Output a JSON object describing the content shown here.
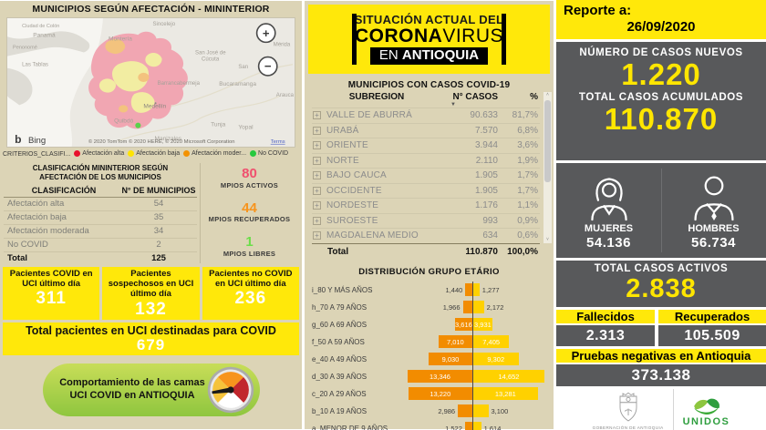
{
  "colors": {
    "yellow": "#FFE80A",
    "dark_gray": "#58595B",
    "beige": "#DCD4B6",
    "value_yellow": "#FFE600",
    "bar_f_orange": "#F28C00",
    "bar_m_gold": "#FFD100",
    "green_pill": "#8FC63F"
  },
  "left_panel": {
    "title": "MUNICIPIOS SEGÚN AFECTACIÓN - MININTERIOR",
    "map": {
      "logo_glyph": "b",
      "provider": "Bing",
      "attribution": "© 2020 TomTom © 2020 HERE, © 2020 Microsoft Corporation",
      "terms": "Terms",
      "zoom_in": "+",
      "zoom_out": "−",
      "city_labels": [
        "Ciudad de Colón",
        "Panamá",
        "Penonomé",
        "Las Tablas",
        "Montería",
        "Sincelejo",
        "San José de",
        "Cúcuta",
        "San",
        "Mérida",
        "Bucaramanga",
        "Barrancabermeja",
        "Arauca",
        "Medellín",
        "Quibdó",
        "Tunja",
        "Yopal",
        "Manizales"
      ]
    },
    "map_legend": {
      "title": "CRITERIOS_CLASIFI...",
      "items": [
        {
          "label": "Afectación alta",
          "color": "#E8112D"
        },
        {
          "label": "Afectación baja",
          "color": "#FFE400"
        },
        {
          "label": "Afectación moder...",
          "color": "#F39200"
        },
        {
          "label": "No COVID",
          "color": "#27C93F"
        }
      ]
    },
    "classification": {
      "title": "CLASIFICACIÓN MININTERIOR SEGÚN AFECTACIÓN DE LOS MUNICIPIOS",
      "col_classification": "CLASIFICACIÓN",
      "col_count": "N° DE MUNICIPIOS",
      "rows": [
        {
          "label": "Afectación alta",
          "value": "54"
        },
        {
          "label": "Afectación baja",
          "value": "35"
        },
        {
          "label": "Afectación moderada",
          "value": "34"
        },
        {
          "label": "No COVID",
          "value": "2"
        }
      ],
      "total_label": "Total",
      "total_value": "125"
    },
    "mpio_stats": [
      {
        "value": "80",
        "label": "MPIOS ACTIVOS",
        "color": "#F0506E"
      },
      {
        "value": "44",
        "label": "MPIOS RECUPERADOS",
        "color": "#F7941D"
      },
      {
        "value": "1",
        "label": "MPIOS LIBRES",
        "color": "#6BDE49"
      }
    ],
    "uci_cards": [
      {
        "title": "Pacientes COVID en UCI último día",
        "value": "311"
      },
      {
        "title": "Pacientes sospechosos en UCI último día",
        "value": "132"
      },
      {
        "title": "Pacientes no COVID en UCI último día",
        "value": "236"
      }
    ],
    "uci_total_label": "Total pacientes en UCI destinadas para COVID",
    "uci_total_value": "679",
    "gauge_button_label": "Comportamiento de las camas UCI COVID en ANTIOQUIA"
  },
  "middle_panel": {
    "banner": {
      "line1": "SITUACIÓN ACTUAL DEL",
      "line2_strong": "CORONA",
      "line2_light": "VIRUS",
      "line3_light": "EN ",
      "line3_strong": "ANTIOQUIA"
    },
    "table": {
      "title": "MUNICIPIOS CON CASOS COVID-19",
      "col_subregion": "SUBREGION",
      "col_cases": "N° CASOS",
      "col_pct": "%",
      "sort_icon": "▼",
      "expand_symbol": "+",
      "scroll_up": "˄",
      "scroll_down": "˅",
      "rows": [
        {
          "name": "VALLE DE ABURRÁ",
          "cases": "90.633",
          "pct": "81,7%"
        },
        {
          "name": "URABÁ",
          "cases": "7.570",
          "pct": "6,8%"
        },
        {
          "name": "ORIENTE",
          "cases": "3.944",
          "pct": "3,6%"
        },
        {
          "name": "NORTE",
          "cases": "2.110",
          "pct": "1,9%"
        },
        {
          "name": "BAJO CAUCA",
          "cases": "1.905",
          "pct": "1,7%"
        },
        {
          "name": "OCCIDENTE",
          "cases": "1.905",
          "pct": "1,7%"
        },
        {
          "name": "NORDESTE",
          "cases": "1.176",
          "pct": "1,1%"
        },
        {
          "name": "SUROESTE",
          "cases": "993",
          "pct": "0,9%"
        },
        {
          "name": "MAGDALENA MEDIO",
          "cases": "634",
          "pct": "0,6%"
        }
      ],
      "total_label": "Total",
      "total_cases": "110.870",
      "total_pct": "100,0%"
    },
    "pyramid_title": "DISTRIBUCIÓN GRUPO ETÁRIO"
  },
  "right_panel": {
    "report_label": "Reporte a:",
    "report_date": "26/09/2020",
    "new_cases_label": "NÚMERO DE CASOS NUEVOS",
    "new_cases_value": "1.220",
    "total_cases_label": "TOTAL CASOS ACUMULADOS",
    "total_cases_value": "110.870",
    "women_label": "MUJERES",
    "women_value": "54.136",
    "men_label": "HOMBRES",
    "men_value": "56.734",
    "active_label": "TOTAL CASOS ACTIVOS",
    "active_value": "2.838",
    "deaths_label": "Fallecidos",
    "deaths_value": "2.313",
    "recovered_label": "Recuperados",
    "recovered_value": "105.509",
    "negative_label": "Pruebas negativas en Antioquia",
    "negative_value": "373.138",
    "footer": {
      "gov_label": "GOBERNACIÓN DE ANTIOQUIA",
      "unidos_label": "UNIDOS"
    }
  },
  "chart_data": [
    {
      "type": "table",
      "title": "MUNICIPIOS CON CASOS COVID-19",
      "columns": [
        "SUBREGION",
        "N° CASOS",
        "%"
      ],
      "rows": [
        [
          "VALLE DE ABURRÁ",
          90633,
          81.7
        ],
        [
          "URABÁ",
          7570,
          6.8
        ],
        [
          "ORIENTE",
          3944,
          3.6
        ],
        [
          "NORTE",
          2110,
          1.9
        ],
        [
          "BAJO CAUCA",
          1905,
          1.7
        ],
        [
          "OCCIDENTE",
          1905,
          1.7
        ],
        [
          "NORDESTE",
          1176,
          1.1
        ],
        [
          "SUROESTE",
          993,
          0.9
        ],
        [
          "MAGDALENA MEDIO",
          634,
          0.6
        ]
      ],
      "total": [
        "Total",
        110870,
        100.0
      ]
    },
    {
      "type": "bar",
      "orientation": "horizontal-pyramid",
      "title": "DISTRIBUCIÓN GRUPO ETÁRIO",
      "categories": [
        "i_80 Y MÁS AÑOS",
        "h_70 A 79 AÑOS",
        "g_60 A 69 AÑOS",
        "f_50 A 59 AÑOS",
        "e_40 A 49 AÑOS",
        "d_30 A 39 AÑOS",
        "c_20 A 29 AÑOS",
        "b_10 A 19 AÑOS",
        "a_MENOR DE 9 AÑOS"
      ],
      "series": [
        {
          "name": "F",
          "color": "#F28C00",
          "values": [
            1440,
            1966,
            3616,
            7010,
            9030,
            13346,
            13220,
            2986,
            1522
          ]
        },
        {
          "name": "M",
          "color": "#FFD100",
          "values": [
            1277,
            2172,
            3931,
            7405,
            9302,
            14652,
            13281,
            3100,
            1614
          ]
        }
      ],
      "value_labels": {
        "F": [
          "1,440",
          "1,966",
          "3,616",
          "7,010",
          "9,030",
          "13,346",
          "13,220",
          "2,986",
          "1,522"
        ],
        "M": [
          "1,277",
          "2,172",
          "3,931",
          "7,405",
          "9,302",
          "14,652",
          "13,281",
          "3,100",
          "1,614"
        ]
      },
      "legend_position": "bottom"
    },
    {
      "type": "table",
      "title": "CLASIFICACIÓN MININTERIOR SEGÚN AFECTACIÓN DE LOS MUNICIPIOS",
      "columns": [
        "CLASIFICACIÓN",
        "N° DE MUNICIPIOS"
      ],
      "rows": [
        [
          "Afectación alta",
          54
        ],
        [
          "Afectación baja",
          35
        ],
        [
          "Afectación moderada",
          34
        ],
        [
          "No COVID",
          2
        ]
      ],
      "total": [
        "Total",
        125
      ]
    }
  ]
}
